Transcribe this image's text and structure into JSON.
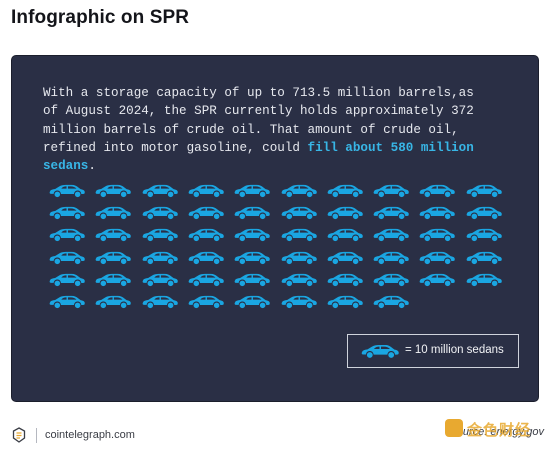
{
  "title": "Infographic on SPR",
  "infographic": {
    "text_part1": "With a storage capacity of up to 713.5 million barrels,as of August 2024, the SPR currently holds approximately 372 million barrels of crude oil. That amount of crude oil, refined into motor gasoline, could ",
    "text_highlight": "fill about 580 million sedans",
    "text_end": ".",
    "car_count": 58,
    "cars_per_row": 10,
    "car_color": "#1aa6e2",
    "legend_label": "= 10 million sedans"
  },
  "footer": {
    "site": "cointelegraph.com",
    "source": "Source: energy.gov",
    "watermark_text": "金色财经"
  }
}
